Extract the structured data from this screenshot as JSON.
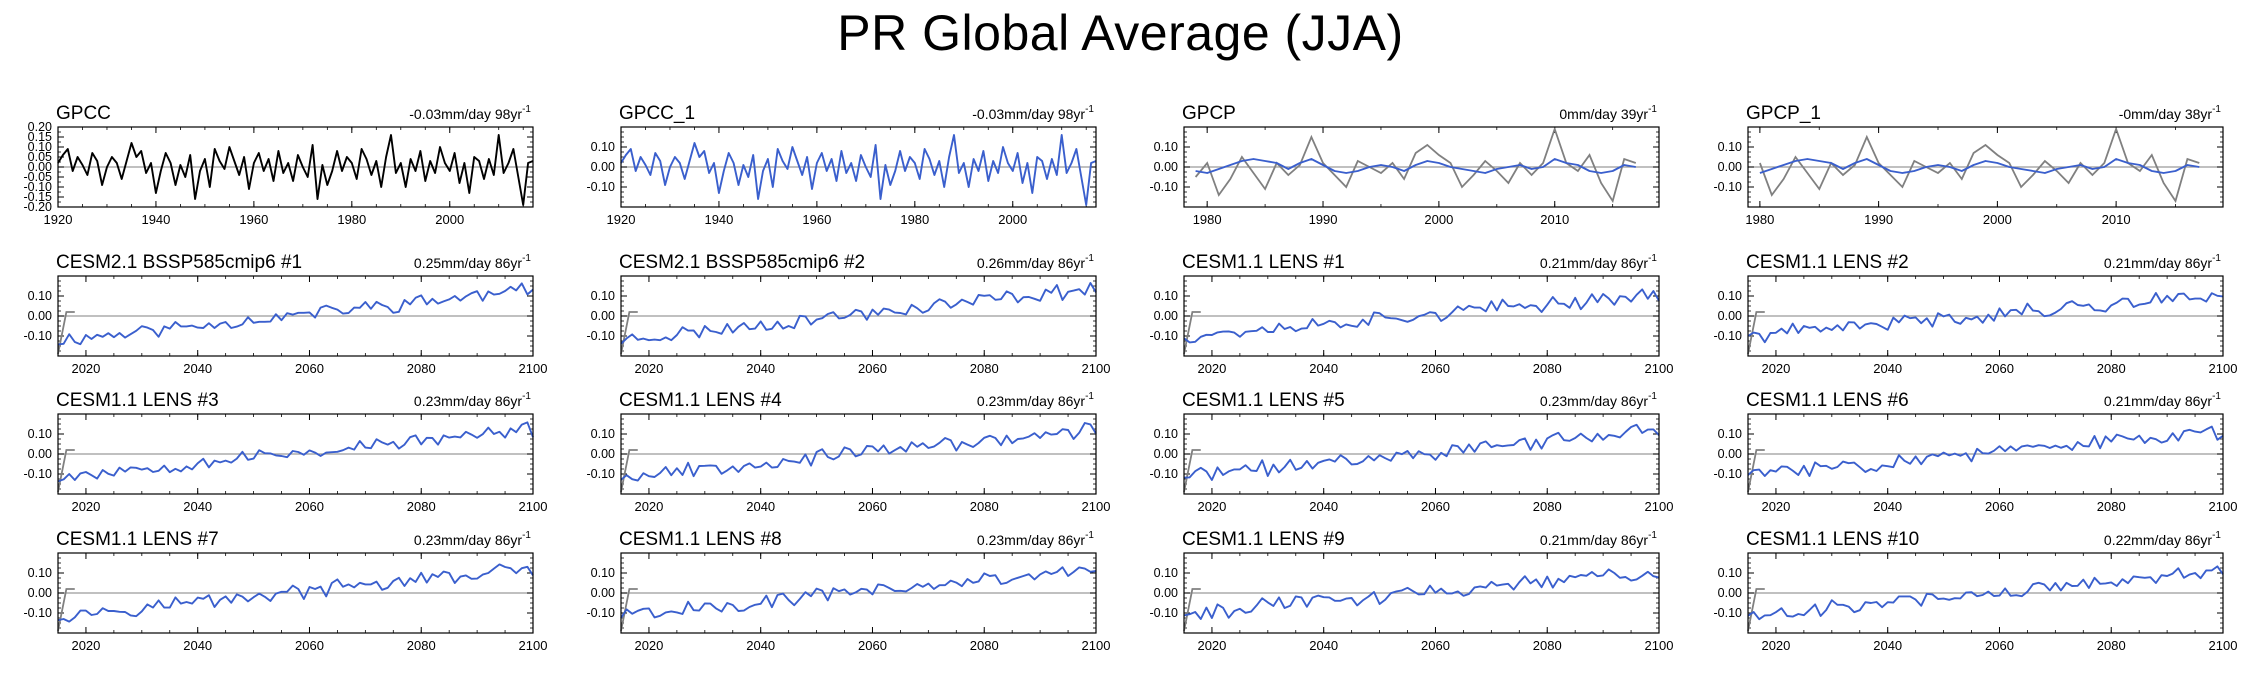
{
  "title": "PR Global Average (JJA)",
  "colors": {
    "obs": "#000000",
    "model": "#3a5fcd",
    "trend": "#808080",
    "axis": "#000000",
    "zero": "#9a9a9a"
  },
  "chart_data": [
    {
      "title": "GPCC",
      "trend_label": "-0.03mm/day 98yr",
      "superscript": "-1",
      "type": "line",
      "series_color": "obs",
      "x_start": 1920,
      "x_end": 2017,
      "xlim": [
        1920,
        2017
      ],
      "xticks": [
        "1920",
        "1940",
        "1960",
        "1980",
        "2000"
      ],
      "ylim": [
        -0.2,
        0.2
      ],
      "yticks": [
        "0.20",
        "0.15",
        "0.10",
        "0.05",
        "0.00",
        "-0.05",
        "-0.10",
        "-0.15",
        "-0.20"
      ],
      "values": [
        0.02,
        0.06,
        0.09,
        -0.02,
        0.05,
        0.01,
        -0.04,
        0.07,
        0.03,
        -0.09,
        0.0,
        0.05,
        0.02,
        -0.06,
        0.03,
        0.12,
        0.05,
        0.08,
        -0.03,
        0.02,
        -0.13,
        -0.02,
        0.07,
        0.02,
        -0.09,
        0.01,
        -0.05,
        0.06,
        -0.16,
        -0.02,
        0.04,
        -0.1,
        0.09,
        0.03,
        -0.01,
        0.1,
        0.03,
        -0.04,
        0.05,
        -0.11,
        0.02,
        0.07,
        -0.02,
        0.04,
        -0.07,
        0.08,
        -0.03,
        0.02,
        -0.07,
        0.06,
        0.0,
        -0.05,
        0.11,
        -0.16,
        0.01,
        -0.09,
        -0.02,
        0.08,
        -0.02,
        0.05,
        0.02,
        -0.06,
        0.09,
        0.04,
        -0.04,
        0.03,
        -0.1,
        0.05,
        0.16,
        -0.03,
        0.02,
        -0.1,
        0.04,
        -0.02,
        0.08,
        -0.07,
        0.03,
        -0.03,
        0.1,
        0.02,
        -0.02,
        0.07,
        -0.08,
        0.02,
        -0.13,
        0.05,
        0.03,
        -0.06,
        0.04,
        -0.04,
        0.16,
        -0.03,
        0.02,
        0.09,
        -0.05,
        -0.19,
        0.02,
        0.03
      ]
    },
    {
      "title": "GPCC_1",
      "trend_label": "-0.03mm/day 98yr",
      "superscript": "-1",
      "type": "line",
      "series_color": "model",
      "x_start": 1920,
      "x_end": 2017,
      "xlim": [
        1920,
        2017
      ],
      "xticks": [
        "1920",
        "1940",
        "1960",
        "1980",
        "2000"
      ],
      "ylim": [
        -0.2,
        0.2
      ],
      "yticks": [
        "0.10",
        "0.00",
        "-0.10"
      ],
      "values": [
        0.02,
        0.06,
        0.09,
        -0.02,
        0.05,
        0.01,
        -0.04,
        0.07,
        0.03,
        -0.09,
        0.0,
        0.05,
        0.02,
        -0.06,
        0.03,
        0.12,
        0.05,
        0.08,
        -0.03,
        0.02,
        -0.13,
        -0.02,
        0.07,
        0.02,
        -0.09,
        0.01,
        -0.05,
        0.06,
        -0.16,
        -0.02,
        0.04,
        -0.1,
        0.09,
        0.03,
        -0.01,
        0.1,
        0.03,
        -0.04,
        0.05,
        -0.11,
        0.02,
        0.07,
        -0.02,
        0.04,
        -0.07,
        0.08,
        -0.03,
        0.02,
        -0.07,
        0.06,
        0.0,
        -0.05,
        0.11,
        -0.16,
        0.01,
        -0.09,
        -0.02,
        0.08,
        -0.02,
        0.05,
        0.02,
        -0.06,
        0.09,
        0.04,
        -0.04,
        0.03,
        -0.1,
        0.05,
        0.16,
        -0.03,
        0.02,
        -0.1,
        0.04,
        -0.02,
        0.08,
        -0.07,
        0.03,
        -0.03,
        0.1,
        0.02,
        -0.02,
        0.07,
        -0.08,
        0.02,
        -0.13,
        0.05,
        0.03,
        -0.06,
        0.04,
        -0.04,
        0.16,
        -0.03,
        0.02,
        0.09,
        -0.05,
        -0.19,
        0.02,
        0.03
      ]
    },
    {
      "title": "GPCP",
      "trend_label": "0mm/day 39yr",
      "superscript": "-1",
      "type": "line",
      "series_color": "model",
      "x_start": 1979,
      "x_end": 2017,
      "xlim": [
        1978,
        2019
      ],
      "xticks": [
        "1980",
        "1990",
        "2000",
        "2010"
      ],
      "ylim": [
        -0.2,
        0.2
      ],
      "yticks": [
        "0.10",
        "0.00",
        "-0.10"
      ],
      "values": [
        -0.02,
        -0.03,
        -0.01,
        0.01,
        0.03,
        0.04,
        0.03,
        0.02,
        -0.01,
        0.02,
        0.04,
        0.01,
        -0.02,
        -0.03,
        -0.02,
        0.0,
        0.01,
        0.0,
        -0.02,
        0.01,
        0.03,
        0.02,
        0.0,
        -0.01,
        -0.02,
        -0.03,
        -0.01,
        0.0,
        0.01,
        -0.01,
        0.0,
        0.04,
        0.02,
        0.01,
        -0.02,
        -0.03,
        -0.02,
        0.01,
        0.0
      ],
      "grey_values": [
        -0.05,
        0.02,
        -0.14,
        -0.06,
        0.05,
        -0.03,
        -0.11,
        0.02,
        -0.04,
        0.01,
        0.15,
        0.02,
        -0.04,
        -0.1,
        0.03,
        0.0,
        -0.03,
        0.02,
        -0.06,
        0.07,
        0.11,
        0.06,
        0.02,
        -0.1,
        -0.04,
        0.03,
        -0.02,
        -0.08,
        0.02,
        -0.04,
        0.02,
        0.19,
        0.02,
        -0.02,
        0.06,
        -0.08,
        -0.17,
        0.04,
        0.02
      ]
    },
    {
      "title": "GPCP_1",
      "trend_label": "-0mm/day 38yr",
      "superscript": "-1",
      "type": "line",
      "series_color": "model",
      "x_start": 1980,
      "x_end": 2017,
      "xlim": [
        1979,
        2019
      ],
      "xticks": [
        "1980",
        "1990",
        "2000",
        "2010"
      ],
      "ylim": [
        -0.2,
        0.2
      ],
      "yticks": [
        "0.10",
        "0.00",
        "-0.10"
      ],
      "values": [
        -0.03,
        -0.01,
        0.01,
        0.03,
        0.04,
        0.03,
        0.02,
        -0.01,
        0.02,
        0.04,
        0.01,
        -0.02,
        -0.03,
        -0.02,
        0.0,
        0.01,
        0.0,
        -0.02,
        0.01,
        0.03,
        0.02,
        0.0,
        -0.01,
        -0.02,
        -0.03,
        -0.01,
        0.0,
        0.01,
        -0.01,
        0.0,
        0.04,
        0.02,
        0.01,
        -0.02,
        -0.03,
        -0.02,
        0.01,
        0.0
      ],
      "grey_values": [
        0.02,
        -0.14,
        -0.06,
        0.05,
        -0.03,
        -0.11,
        0.02,
        -0.04,
        0.01,
        0.15,
        0.02,
        -0.04,
        -0.1,
        0.03,
        0.0,
        -0.03,
        0.02,
        -0.06,
        0.07,
        0.11,
        0.06,
        0.02,
        -0.1,
        -0.04,
        0.03,
        -0.02,
        -0.08,
        0.02,
        -0.04,
        0.02,
        0.19,
        0.02,
        -0.02,
        0.06,
        -0.08,
        -0.17,
        0.04,
        0.02
      ]
    },
    {
      "title": "CESM2.1 BSSP585cmip6 #1",
      "trend_label": "0.25mm/day 86yr",
      "superscript": "-1",
      "type": "line",
      "series_color": "model",
      "x_start": 2015,
      "x_end": 2100,
      "xlim": [
        2015,
        2100
      ],
      "xticks": [
        "2020",
        "2040",
        "2060",
        "2080",
        "2100"
      ],
      "ylim": [
        -0.2,
        0.2
      ],
      "yticks": [
        "0.10",
        "0.00",
        "-0.10"
      ],
      "base": -0.12,
      "slope": 0.25,
      "seed": 11,
      "spike": [
        -0.19,
        0.02
      ]
    },
    {
      "title": "CESM2.1 BSSP585cmip6 #2",
      "trend_label": "0.26mm/day 86yr",
      "superscript": "-1",
      "type": "line",
      "series_color": "model",
      "x_start": 2015,
      "x_end": 2100,
      "xlim": [
        2015,
        2100
      ],
      "xticks": [
        "2020",
        "2040",
        "2060",
        "2080",
        "2100"
      ],
      "ylim": [
        -0.2,
        0.2
      ],
      "yticks": [
        "0.10",
        "0.00",
        "-0.10"
      ],
      "base": -0.12,
      "slope": 0.26,
      "seed": 23,
      "spike": [
        -0.19,
        0.02
      ]
    },
    {
      "title": "CESM1.1 LENS #1",
      "trend_label": "0.21mm/day 86yr",
      "superscript": "-1",
      "type": "line",
      "series_color": "model",
      "x_start": 2015,
      "x_end": 2100,
      "xlim": [
        2015,
        2100
      ],
      "xticks": [
        "2020",
        "2040",
        "2060",
        "2080",
        "2100"
      ],
      "ylim": [
        -0.2,
        0.2
      ],
      "yticks": [
        "0.10",
        "0.00",
        "-0.10"
      ],
      "base": -0.1,
      "slope": 0.21,
      "seed": 37,
      "spike": [
        -0.19,
        0.02
      ]
    },
    {
      "title": "CESM1.1 LENS #2",
      "trend_label": "0.21mm/day 86yr",
      "superscript": "-1",
      "type": "line",
      "series_color": "model",
      "x_start": 2015,
      "x_end": 2100,
      "xlim": [
        2015,
        2100
      ],
      "xticks": [
        "2020",
        "2040",
        "2060",
        "2080",
        "2100"
      ],
      "ylim": [
        -0.2,
        0.2
      ],
      "yticks": [
        "0.10",
        "0.00",
        "-0.10"
      ],
      "base": -0.1,
      "slope": 0.21,
      "seed": 41,
      "spike": [
        -0.19,
        0.02
      ]
    },
    {
      "title": "CESM1.1 LENS #3",
      "trend_label": "0.23mm/day 86yr",
      "superscript": "-1",
      "type": "line",
      "series_color": "model",
      "x_start": 2015,
      "x_end": 2100,
      "xlim": [
        2015,
        2100
      ],
      "xticks": [
        "2020",
        "2040",
        "2060",
        "2080",
        "2100"
      ],
      "ylim": [
        -0.2,
        0.2
      ],
      "yticks": [
        "0.10",
        "0.00",
        "-0.10"
      ],
      "base": -0.11,
      "slope": 0.23,
      "seed": 53,
      "spike": [
        -0.19,
        0.02
      ]
    },
    {
      "title": "CESM1.1 LENS #4",
      "trend_label": "0.23mm/day 86yr",
      "superscript": "-1",
      "type": "line",
      "series_color": "model",
      "x_start": 2015,
      "x_end": 2100,
      "xlim": [
        2015,
        2100
      ],
      "xticks": [
        "2020",
        "2040",
        "2060",
        "2080",
        "2100"
      ],
      "ylim": [
        -0.2,
        0.2
      ],
      "yticks": [
        "0.10",
        "0.00",
        "-0.10"
      ],
      "base": -0.11,
      "slope": 0.23,
      "seed": 67,
      "spike": [
        -0.19,
        0.02
      ]
    },
    {
      "title": "CESM1.1 LENS #5",
      "trend_label": "0.23mm/day 86yr",
      "superscript": "-1",
      "type": "line",
      "series_color": "model",
      "x_start": 2015,
      "x_end": 2100,
      "xlim": [
        2015,
        2100
      ],
      "xticks": [
        "2020",
        "2040",
        "2060",
        "2080",
        "2100"
      ],
      "ylim": [
        -0.2,
        0.2
      ],
      "yticks": [
        "0.10",
        "0.00",
        "-0.10"
      ],
      "base": -0.11,
      "slope": 0.23,
      "seed": 71,
      "spike": [
        -0.19,
        0.02
      ]
    },
    {
      "title": "CESM1.1 LENS #6",
      "trend_label": "0.21mm/day 86yr",
      "superscript": "-1",
      "type": "line",
      "series_color": "model",
      "x_start": 2015,
      "x_end": 2100,
      "xlim": [
        2015,
        2100
      ],
      "xticks": [
        "2020",
        "2040",
        "2060",
        "2080",
        "2100"
      ],
      "ylim": [
        -0.2,
        0.2
      ],
      "yticks": [
        "0.10",
        "0.00",
        "-0.10"
      ],
      "base": -0.1,
      "slope": 0.21,
      "seed": 83,
      "spike": [
        -0.19,
        0.02
      ]
    },
    {
      "title": "CESM1.1 LENS #7",
      "trend_label": "0.23mm/day 86yr",
      "superscript": "-1",
      "type": "line",
      "series_color": "model",
      "x_start": 2015,
      "x_end": 2100,
      "xlim": [
        2015,
        2100
      ],
      "xticks": [
        "2020",
        "2040",
        "2060",
        "2080",
        "2100"
      ],
      "ylim": [
        -0.2,
        0.2
      ],
      "yticks": [
        "0.10",
        "0.00",
        "-0.10"
      ],
      "base": -0.11,
      "slope": 0.23,
      "seed": 97,
      "spike": [
        -0.19,
        0.02
      ]
    },
    {
      "title": "CESM1.1 LENS #8",
      "trend_label": "0.23mm/day 86yr",
      "superscript": "-1",
      "type": "line",
      "series_color": "model",
      "x_start": 2015,
      "x_end": 2100,
      "xlim": [
        2015,
        2100
      ],
      "xticks": [
        "2020",
        "2040",
        "2060",
        "2080",
        "2100"
      ],
      "ylim": [
        -0.2,
        0.2
      ],
      "yticks": [
        "0.10",
        "0.00",
        "-0.10"
      ],
      "base": -0.11,
      "slope": 0.23,
      "seed": 101,
      "spike": [
        -0.19,
        0.02
      ]
    },
    {
      "title": "CESM1.1 LENS #9",
      "trend_label": "0.21mm/day 86yr",
      "superscript": "-1",
      "type": "line",
      "series_color": "model",
      "x_start": 2015,
      "x_end": 2100,
      "xlim": [
        2015,
        2100
      ],
      "xticks": [
        "2020",
        "2040",
        "2060",
        "2080",
        "2100"
      ],
      "ylim": [
        -0.2,
        0.2
      ],
      "yticks": [
        "0.10",
        "0.00",
        "-0.10"
      ],
      "base": -0.1,
      "slope": 0.21,
      "seed": 113,
      "spike": [
        -0.19,
        0.02
      ]
    },
    {
      "title": "CESM1.1 LENS #10",
      "trend_label": "0.22mm/day 86yr",
      "superscript": "-1",
      "type": "line",
      "series_color": "model",
      "x_start": 2015,
      "x_end": 2100,
      "xlim": [
        2015,
        2100
      ],
      "xticks": [
        "2020",
        "2040",
        "2060",
        "2080",
        "2100"
      ],
      "ylim": [
        -0.2,
        0.2
      ],
      "yticks": [
        "0.10",
        "0.00",
        "-0.10"
      ],
      "base": -0.11,
      "slope": 0.22,
      "seed": 127,
      "spike": [
        -0.19,
        0.02
      ]
    }
  ]
}
